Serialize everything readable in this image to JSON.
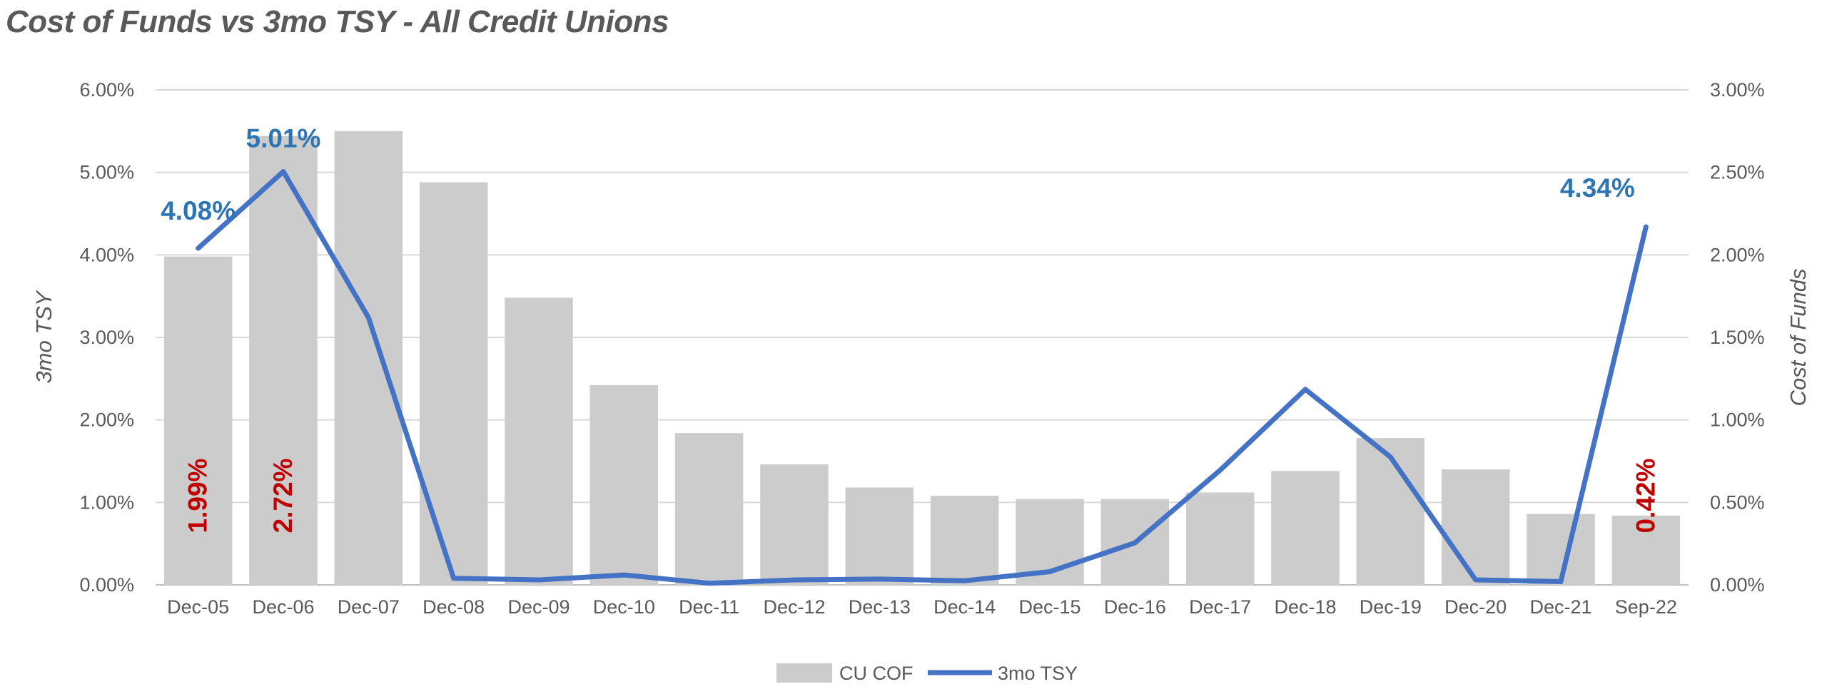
{
  "chart_data": {
    "type": "bar+line",
    "title": "Cost of Funds vs 3mo TSY - All Credit Unions",
    "categories": [
      "Dec-05",
      "Dec-06",
      "Dec-07",
      "Dec-08",
      "Dec-09",
      "Dec-10",
      "Dec-11",
      "Dec-12",
      "Dec-13",
      "Dec-14",
      "Dec-15",
      "Dec-16",
      "Dec-17",
      "Dec-18",
      "Dec-19",
      "Dec-20",
      "Dec-21",
      "Sep-22"
    ],
    "y_left": {
      "label": "3mo TSY",
      "min": 0,
      "max": 6,
      "step": 1,
      "tick_labels": [
        "0.00%",
        "1.00%",
        "2.00%",
        "3.00%",
        "4.00%",
        "5.00%",
        "6.00%"
      ]
    },
    "y_right": {
      "label": "Cost of Funds",
      "min": 0,
      "max": 3,
      "step": 0.5,
      "tick_labels": [
        "0.00%",
        "0.50%",
        "1.00%",
        "1.50%",
        "2.00%",
        "2.50%",
        "3.00%"
      ]
    },
    "series": [
      {
        "name": "CU COF",
        "type": "bar",
        "axis": "right",
        "color": "#cccccc",
        "values": [
          1.99,
          2.72,
          2.75,
          2.44,
          1.74,
          1.21,
          0.92,
          0.73,
          0.59,
          0.54,
          0.52,
          0.52,
          0.56,
          0.69,
          0.89,
          0.7,
          0.43,
          0.42
        ],
        "data_labels": [
          {
            "index": 0,
            "text": "1.99%"
          },
          {
            "index": 1,
            "text": "2.72%"
          },
          {
            "index": 17,
            "text": "0.42%"
          }
        ],
        "label_color": "#c00000"
      },
      {
        "name": "3mo TSY",
        "type": "line",
        "axis": "left",
        "color": "#4472c4",
        "values": [
          4.08,
          5.01,
          3.24,
          0.08,
          0.06,
          0.12,
          0.02,
          0.06,
          0.07,
          0.05,
          0.16,
          0.51,
          1.39,
          2.37,
          1.55,
          0.06,
          0.04,
          4.34
        ],
        "data_labels": [
          {
            "index": 0,
            "text": "4.08%"
          },
          {
            "index": 1,
            "text": "5.01%"
          },
          {
            "index": 17,
            "text": "4.34%"
          }
        ],
        "label_color": "#2e75b6"
      }
    ],
    "grid": true,
    "legend": "bottom"
  }
}
